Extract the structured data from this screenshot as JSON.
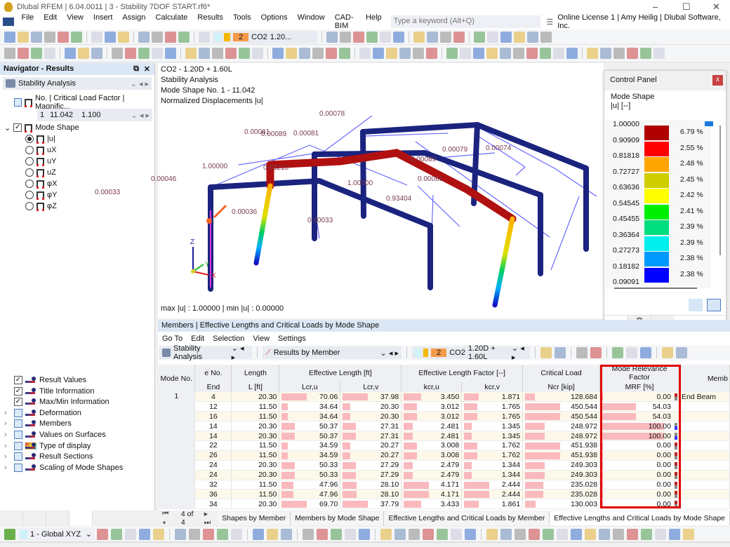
{
  "window": {
    "title": "Dlubal RFEM | 6.04.0011 | 3 - Stability 7DOF START.rf6*",
    "minimize": "–",
    "maximize": "☐",
    "close": "✕"
  },
  "menu": {
    "items": [
      "File",
      "Edit",
      "View",
      "Insert",
      "Assign",
      "Calculate",
      "Results",
      "Tools",
      "Options",
      "Window",
      "CAD-BIM",
      "Help"
    ],
    "search_placeholder": "Type a keyword (Alt+Q)",
    "license": "Online License 1 | Amy Heilig | Dlubal Software, Inc."
  },
  "toolbar": {
    "lc_number": "2",
    "lc_name": "CO2",
    "lc_combo": "1.20..."
  },
  "navigator": {
    "title": "Navigator - Results",
    "analysis": "Stability Analysis",
    "table_header": "No. | Critical Load Factor | Magnific...",
    "mode_no": "1",
    "factor": "11.042",
    "magnific": "1.100",
    "mode_shape": "Mode Shape",
    "components": [
      {
        "label": "|u|",
        "selected": true
      },
      {
        "label": "uX",
        "selected": false
      },
      {
        "label": "uY",
        "selected": false
      },
      {
        "label": "uZ",
        "selected": false
      },
      {
        "label": "φX",
        "selected": false
      },
      {
        "label": "φY",
        "selected": false
      },
      {
        "label": "φZ",
        "selected": false
      }
    ],
    "options": [
      {
        "label": "Result Values",
        "checked": true,
        "expand": false
      },
      {
        "label": "Title Information",
        "checked": true,
        "expand": false
      },
      {
        "label": "Max/Min Information",
        "checked": true,
        "expand": false
      },
      {
        "label": "Deformation",
        "checked": false,
        "expand": true
      },
      {
        "label": "Members",
        "checked": false,
        "expand": true
      },
      {
        "label": "Values on Surfaces",
        "checked": false,
        "expand": true
      },
      {
        "label": "Type of display",
        "checked": false,
        "expand": true
      },
      {
        "label": "Result Sections",
        "checked": false,
        "expand": true
      },
      {
        "label": "Scaling of Mode Shapes",
        "checked": false,
        "expand": true
      }
    ]
  },
  "view": {
    "info": [
      "CO2 - 1.20D + 1.60L",
      "Stability Analysis",
      "Mode Shape No. 1 - 11.042",
      "Normalized Displacements |u|"
    ],
    "maxmin": "max |u| : 1.00000 | min |u| : 0.00000",
    "labels": [
      "0.00078",
      "0.00081",
      "0.00089",
      "0.00081",
      "0.00079",
      "0.00074",
      "1.00000",
      "0.93210",
      "0.00089",
      "0.00046",
      "0.00081",
      "0.00033",
      "1.00000",
      "0.93404",
      "0.00036",
      "0.00033"
    ],
    "axes": {
      "x": "X",
      "y": "Y",
      "z": "Z"
    }
  },
  "control_panel": {
    "title": "Control Panel",
    "close": "x",
    "subtitle": "Mode Shape",
    "unit": "|u| [--]",
    "values": [
      "1.00000",
      "0.90909",
      "0.81818",
      "0.72727",
      "0.63636",
      "0.54545",
      "0.45455",
      "0.36364",
      "0.27273",
      "0.18182",
      "0.09091"
    ],
    "colors": [
      "#b00000",
      "#ff0000",
      "#ffa500",
      "#cfcf00",
      "#ffff00",
      "#00ee00",
      "#00dd80",
      "#00eeee",
      "#0099ff",
      "#0000ff"
    ],
    "percents": [
      "6.79 %",
      "2.55 %",
      "2.48 %",
      "2.45 %",
      "2.42 %",
      "2.41 %",
      "2.39 %",
      "2.39 %",
      "2.38 %",
      "2.38 %"
    ]
  },
  "table_panel": {
    "title": "Members | Effective Lengths and Critical Loads by Mode Shape",
    "menu": [
      "Go To",
      "Edit",
      "Selection",
      "View",
      "Settings"
    ],
    "analysis": "Stability Analysis",
    "results_by": "Results by Member",
    "lc_number": "2",
    "lc_name": "CO2",
    "lc_combo": "1.20D + 1.60L",
    "headers": {
      "mode": "Mode No.",
      "end": "e No.",
      "end2": "End",
      "length": "Length",
      "length_unit": "L [ft]",
      "eff_len": "Effective Length [ft]",
      "lcru": "Lcr,u",
      "lcrv": "Lcr,v",
      "eff_fac": "Effective Length Factor [--]",
      "kcru": "kcr,u",
      "kcrv": "kcr,v",
      "crit": "Critical Load",
      "ncr": "Ncr [kip]",
      "mrf": "Mode Relevance Factor",
      "mrf_unit": "MRF [%]",
      "member": "Memb"
    },
    "mode": "1",
    "rows": [
      {
        "end": "4",
        "L": "20.30",
        "lcru": "70.06",
        "lcrv": "37.98",
        "kcru": "3.450",
        "kcrv": "1.871",
        "ncr": "128.684",
        "mrf": "0.00",
        "flag": "r",
        "member": "End Beam"
      },
      {
        "end": "12",
        "L": "11.50",
        "lcru": "34.64",
        "lcrv": "20.30",
        "kcru": "3.012",
        "kcrv": "1.765",
        "ncr": "450.544",
        "mrf": "54.03",
        "flag": "",
        "member": ""
      },
      {
        "end": "16",
        "L": "11.50",
        "lcru": "34.64",
        "lcrv": "20.30",
        "kcru": "3.012",
        "kcrv": "1.765",
        "ncr": "450.544",
        "mrf": "54.03",
        "flag": "",
        "member": ""
      },
      {
        "end": "14",
        "L": "20.30",
        "lcru": "50.37",
        "lcrv": "27.31",
        "kcru": "2.481",
        "kcrv": "1.345",
        "ncr": "248.972",
        "mrf": "100.00",
        "flag": "b",
        "member": ""
      },
      {
        "end": "14",
        "L": "20.30",
        "lcru": "50.37",
        "lcrv": "27.31",
        "kcru": "2.481",
        "kcrv": "1.345",
        "ncr": "248.972",
        "mrf": "100.00",
        "flag": "b",
        "member": ""
      },
      {
        "end": "22",
        "L": "11.50",
        "lcru": "34.59",
        "lcrv": "20.27",
        "kcru": "3.008",
        "kcrv": "1.762",
        "ncr": "451.938",
        "mrf": "0.00",
        "flag": "r",
        "member": ""
      },
      {
        "end": "26",
        "L": "11.50",
        "lcru": "34.59",
        "lcrv": "20.27",
        "kcru": "3.008",
        "kcrv": "1.762",
        "ncr": "451.938",
        "mrf": "0.00",
        "flag": "r",
        "member": ""
      },
      {
        "end": "24",
        "L": "20.30",
        "lcru": "50.33",
        "lcrv": "27.29",
        "kcru": "2.479",
        "kcrv": "1.344",
        "ncr": "249.303",
        "mrf": "0.00",
        "flag": "r",
        "member": ""
      },
      {
        "end": "24",
        "L": "20.30",
        "lcru": "50.33",
        "lcrv": "27.29",
        "kcru": "2.479",
        "kcrv": "1.344",
        "ncr": "249.303",
        "mrf": "0.00",
        "flag": "r",
        "member": ""
      },
      {
        "end": "32",
        "L": "11.50",
        "lcru": "47.96",
        "lcrv": "28.10",
        "kcru": "4.171",
        "kcrv": "2.444",
        "ncr": "235.028",
        "mrf": "0.00",
        "flag": "r",
        "member": ""
      },
      {
        "end": "36",
        "L": "11.50",
        "lcru": "47.96",
        "lcrv": "28.10",
        "kcru": "4.171",
        "kcrv": "2.444",
        "ncr": "235.028",
        "mrf": "0.00",
        "flag": "r",
        "member": ""
      },
      {
        "end": "34",
        "L": "20.30",
        "lcru": "69.70",
        "lcrv": "37.79",
        "kcru": "3.433",
        "kcrv": "1.861",
        "ncr": "130.003",
        "mrf": "0.00",
        "flag": "r",
        "member": ""
      }
    ],
    "pager": "4 of 4",
    "tabs": [
      {
        "label": "Shapes by Member",
        "active": false
      },
      {
        "label": "Members by Mode Shape",
        "active": false
      },
      {
        "label": "Effective Lengths and Critical Loads by Member",
        "active": false
      },
      {
        "label": "Effective Lengths and Critical Loads by Mode Shape",
        "active": true
      }
    ]
  },
  "bottom": {
    "coord_system": "1 - Global XYZ"
  },
  "colors": {
    "highlight": "#e00000",
    "bar": "#f9b9bd",
    "frame": "#1a237e",
    "buckled": "#b01010"
  }
}
